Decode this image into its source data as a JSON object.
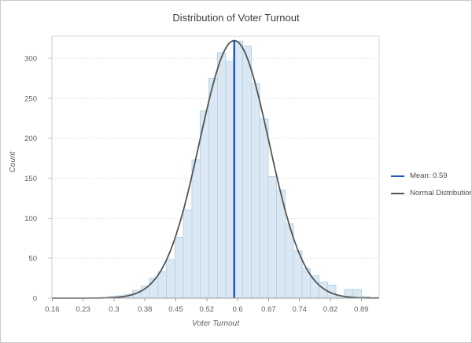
{
  "chart_data": {
    "type": "histogram",
    "title": "Distribution of Voter Turnout",
    "xlabel": "Voter Turnout",
    "ylabel": "Count",
    "xlim": [
      0.1594,
      0.9322
    ],
    "ylim": [
      0,
      327.5
    ],
    "grid": "horizontal",
    "legend_position": "right",
    "x_ticks": [
      {
        "v": 0.16,
        "label": "0.16"
      },
      {
        "v": 0.233,
        "label": "0.23"
      },
      {
        "v": 0.306,
        "label": "0.3"
      },
      {
        "v": 0.379,
        "label": "0.38"
      },
      {
        "v": 0.452,
        "label": "0.45"
      },
      {
        "v": 0.525,
        "label": "0.52"
      },
      {
        "v": 0.598,
        "label": "0.6"
      },
      {
        "v": 0.671,
        "label": "0.67"
      },
      {
        "v": 0.744,
        "label": "0.74"
      },
      {
        "v": 0.817,
        "label": "0.82"
      },
      {
        "v": 0.89,
        "label": "0.89"
      }
    ],
    "y_ticks": [
      0,
      50,
      100,
      150,
      200,
      250,
      300
    ],
    "bins": {
      "start": 0.29,
      "width": 0.02,
      "counts": [
        2,
        3,
        5,
        10,
        15,
        25,
        33,
        48,
        76,
        110,
        173,
        234,
        275,
        307,
        296,
        321,
        315,
        268,
        224,
        152,
        135,
        93,
        59,
        37,
        28,
        20,
        16,
        3,
        11,
        11,
        2,
        1
      ]
    },
    "mean": 0.59,
    "normal_curve": {
      "mean": 0.59,
      "sd": 0.082,
      "peak_count": 322
    },
    "series": [
      {
        "name": "Mean: 0.59",
        "type": "mean-vline",
        "x": 0.59
      },
      {
        "name": "Normal Distribution",
        "type": "normal-curve"
      }
    ],
    "colors": {
      "bar_fill": "#d9e8f3",
      "bar_stroke": "#b9d3e6",
      "curve": "#545454",
      "mean_line": "#2158c8",
      "grid": "#e2e2e2",
      "axis": "#9e9e9e",
      "axis_light": "#d6d6d6",
      "title_text": "#3c3c3c",
      "tick_text": "#616161"
    }
  }
}
